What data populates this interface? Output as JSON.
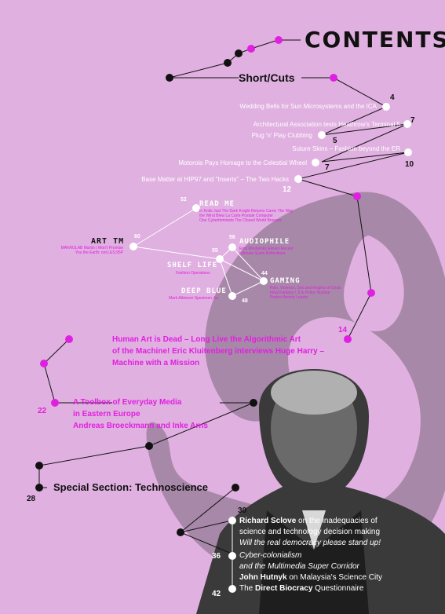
{
  "title": "CONTENTS",
  "short_cuts": {
    "heading": "Short/Cuts",
    "items": [
      {
        "text": "Wedding Bells for Sun Microsystems and the ICA",
        "page": "4"
      },
      {
        "text": "Architectural Association tests Heathrow's Terminal 5",
        "page": "7"
      },
      {
        "text": "Plug 'n' Play Clubbing",
        "page": "5"
      },
      {
        "text": "Suture Skins – Fashion beyond the ER",
        "page": "10"
      },
      {
        "text": "Motorola Pays Homage to the Celestial Wheel",
        "page": "7"
      },
      {
        "text": "Base Matter at HIP97 and \"Inserts\" – The Two Hacks",
        "page": "12"
      }
    ]
  },
  "columns": [
    {
      "heading": "READ ME",
      "page": "52",
      "lines": [
        "In Knits Just The Dark Knight Returns Came The Way",
        "the Wind Blew La Carte Postale Computer",
        "One Cyberfeminists The Closed World Browser"
      ]
    },
    {
      "heading": "ART TM",
      "page": "60",
      "lines": [
        "MAKROLAB Martin | Won't Promise",
        "You the Earth: net.LES:95P"
      ]
    },
    {
      "heading": "AUDIOPHILE",
      "page": "56",
      "lines": [
        "Emit Mindwinks Eleven Recent",
        "Ultimate Sushi Reflections"
      ]
    },
    {
      "heading": "SHELF LIFE",
      "page": "55",
      "lines": [
        "Fashion Operations"
      ]
    },
    {
      "heading": "GAMING",
      "page": "44",
      "lines": [
        "Pain, Violence, Sex and Knights of Crisis",
        "Final Fantasy I, II & Police Nuclear",
        "Perfect Armed Leader"
      ]
    },
    {
      "heading": "DEEP BLUE",
      "page": "48",
      "lines": [
        "Mark Atkinson Specimen Jar"
      ]
    }
  ],
  "features": [
    {
      "page": "14",
      "lines": [
        "Human Art is Dead – Long Live the Algorithmic Art",
        "of the Machine! Eric Kluitenberg interviews Huge Harry –",
        "Machine with a Mission"
      ]
    },
    {
      "page": "22",
      "lines": [
        "A Toolbox of Everyday Media",
        "in Eastern Europe",
        "Andreas Broeckmann and Inke Arns"
      ]
    }
  ],
  "special": {
    "heading": "Special Section: Technoscience",
    "page": "28"
  },
  "techno_items": [
    {
      "page": "30",
      "bold": "Richard Sclove",
      "rest": " on the inadequacies of",
      "line2": "science and technology decision making",
      "italic": "Will the real democracy please stand up!"
    },
    {
      "page": "36",
      "italic1": "Cyber-colonialism",
      "italic2": "and the Multimedia Super Corridor",
      "bold": "John Hutnyk",
      "rest": " on Malaysia's Science City"
    },
    {
      "page": "42",
      "pre": "The ",
      "bold": "Direct Biocracy",
      "rest": " Questionnaire"
    }
  ],
  "colors": {
    "background": "#e0b0e0",
    "accent": "#e020e0",
    "shape": "#a888a8",
    "ink": "#111111"
  }
}
